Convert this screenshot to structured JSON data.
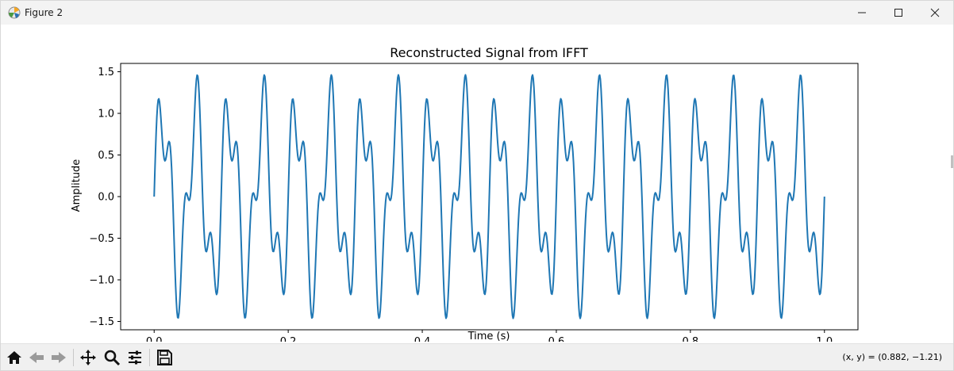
{
  "window": {
    "title": "Figure 2"
  },
  "toolbar": {
    "buttons": [
      "home-icon",
      "back-icon",
      "forward-icon",
      "pan-icon",
      "zoom-icon",
      "configure-subplots-icon",
      "save-icon"
    ],
    "coords": "(x, y) = (0.882, −1.21)"
  },
  "chart_data": {
    "type": "line",
    "title": "Reconstructed Signal from IFFT",
    "xlabel": "Time (s)",
    "ylabel": "Amplitude",
    "xlim": [
      -0.05,
      1.05
    ],
    "ylim": [
      -1.6,
      1.6
    ],
    "xticks": [
      0.0,
      0.2,
      0.4,
      0.6,
      0.8,
      1.0
    ],
    "xtick_labels": [
      "0.0",
      "0.2",
      "0.4",
      "0.6",
      "0.8",
      "1.0"
    ],
    "yticks": [
      -1.5,
      -1.0,
      -0.5,
      0.0,
      0.5,
      1.0,
      1.5
    ],
    "ytick_labels": [
      "−1.5",
      "−1.0",
      "−0.5",
      "0.0",
      "0.5",
      "1.0",
      "1.5"
    ],
    "grid": false,
    "color": "#1f77b4",
    "series": [
      {
        "x_range": [
          0.0,
          1.0
        ],
        "samples": 1000,
        "components": [
          {
            "frequency": 20,
            "amplitude": 1.0
          },
          {
            "frequency": 50,
            "amplitude": 0.5
          }
        ]
      }
    ]
  }
}
